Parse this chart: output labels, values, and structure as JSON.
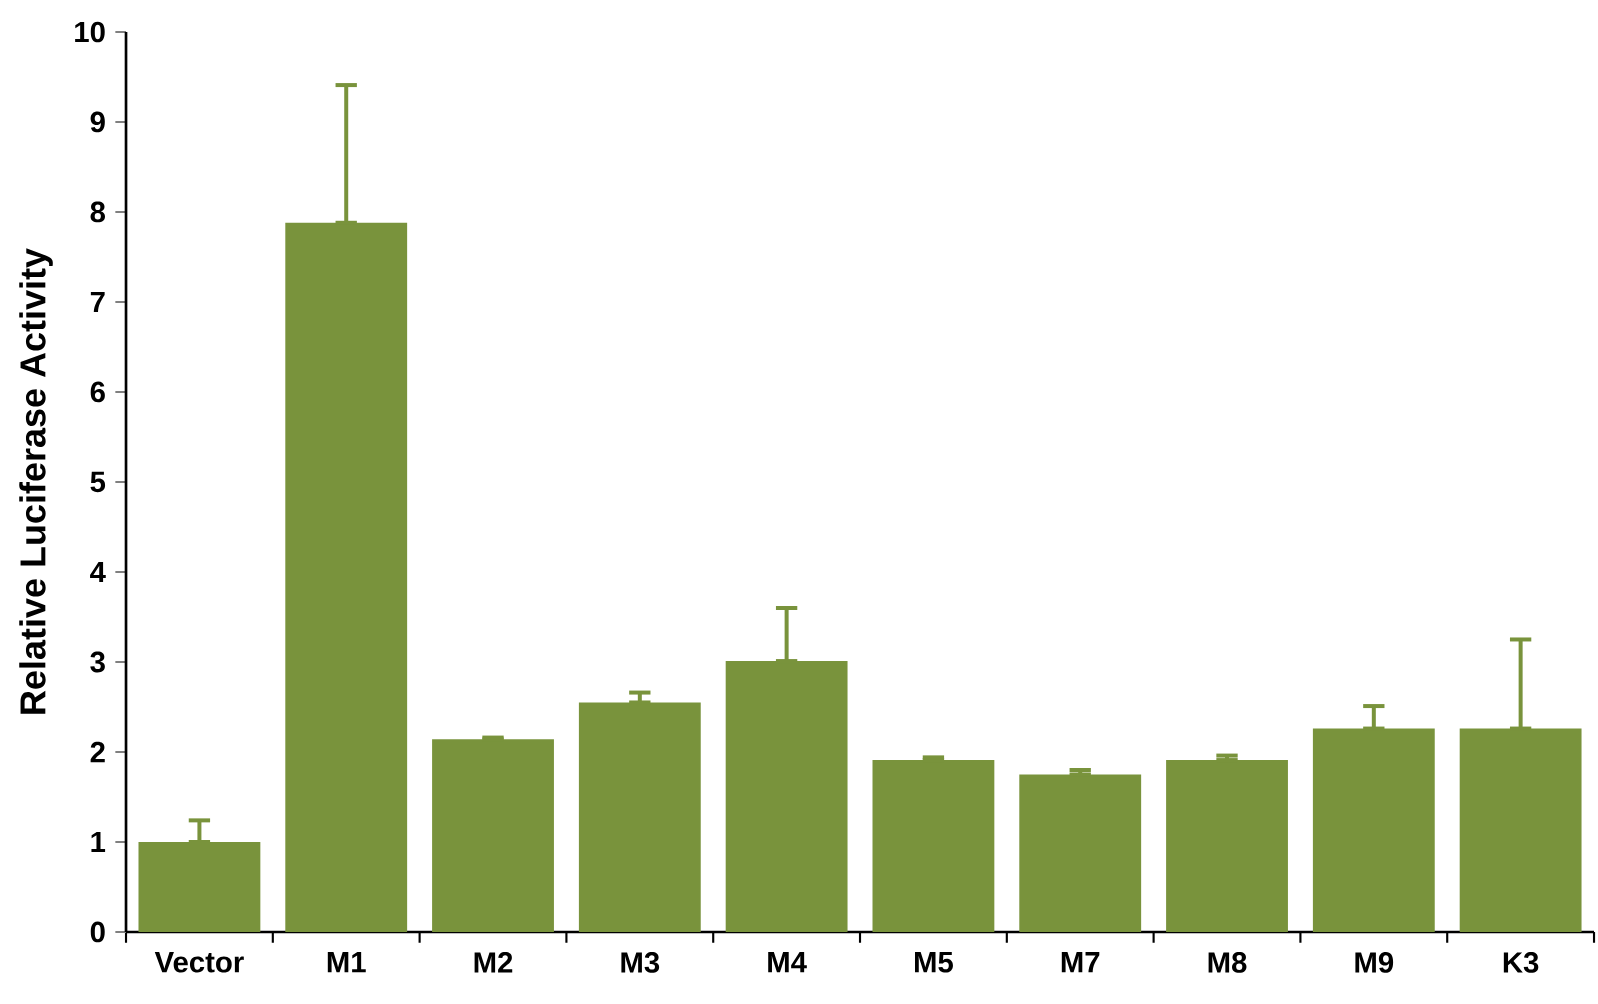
{
  "chart_data": {
    "type": "bar",
    "ylabel": "Relative Luciferase Activity",
    "categories": [
      "Vector",
      "M1",
      "M2",
      "M3",
      "M4",
      "M5",
      "M7",
      "M8",
      "M9",
      "K3"
    ],
    "values": [
      1.0,
      7.88,
      2.14,
      2.55,
      3.01,
      1.91,
      1.75,
      1.91,
      2.26,
      2.26
    ],
    "errors": [
      [
        1.0,
        1.24
      ],
      [
        7.88,
        9.41
      ],
      [
        2.14,
        2.16
      ],
      [
        2.55,
        2.66
      ],
      [
        3.01,
        3.6
      ],
      [
        1.91,
        1.94
      ],
      [
        1.75,
        1.8
      ],
      [
        1.91,
        1.96
      ],
      [
        2.26,
        2.51
      ],
      [
        2.26,
        3.25
      ]
    ],
    "color": "#79933c",
    "ylim": [
      0,
      10
    ],
    "yticks": [
      0,
      1,
      2,
      3,
      4,
      5,
      6,
      7,
      8,
      9,
      10
    ]
  }
}
